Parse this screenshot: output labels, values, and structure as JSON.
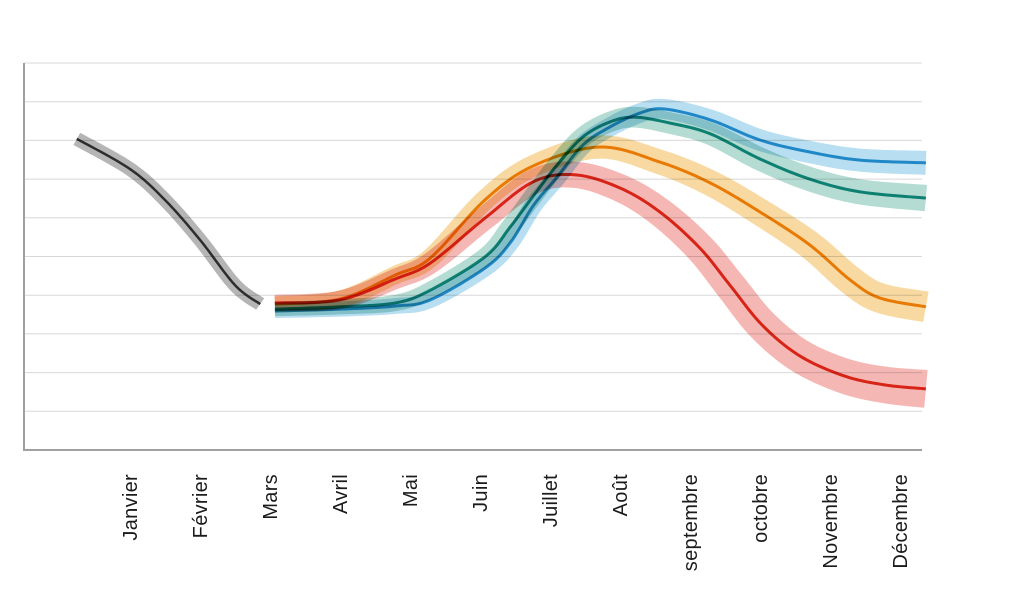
{
  "chart_data": {
    "type": "line",
    "title": "",
    "xlabel": "",
    "ylabel": "",
    "x_axis": {
      "categories": [
        "Janvier",
        "Février",
        "Mars",
        "Avril",
        "Mai",
        "Juin",
        "Juillet",
        "Août",
        "septembre",
        "octobre",
        "Novembre",
        "Décembre"
      ],
      "label_rotation_deg": -90
    },
    "y_axis": {
      "tick_labels_visible": false,
      "range": [
        0,
        10
      ],
      "gridline_interval": 1,
      "note": "no numeric labels shown; values expressed in gridline units above the baseline"
    },
    "legend": {
      "visible": false
    },
    "layout_hints": {
      "grid": "horizontal-only",
      "plot_frame": "left-and-bottom-axis-only",
      "bands": "confidence bands around each line, widening toward December, multiply blending"
    },
    "series": [
      {
        "name": "historique-gris",
        "line_color": "#3f3f3f",
        "band_color": "#b5b5b5",
        "line_width": 2.5,
        "band_halfwidth_start": 0.18,
        "band_halfwidth_end": 0.18,
        "points": [
          [
            0.24,
            8.04
          ],
          [
            1.0,
            7.26
          ],
          [
            1.5,
            6.46
          ],
          [
            2.0,
            5.43
          ],
          [
            2.5,
            4.26
          ],
          [
            2.86,
            3.77
          ]
        ]
      },
      {
        "name": "scenario-rouge",
        "line_color": "#e0311f",
        "band_color": "#f5b7b4",
        "line_width": 3,
        "band_halfwidth_start": 0.21,
        "band_halfwidth_end": 0.49,
        "points": [
          [
            3.07,
            3.8
          ],
          [
            4.0,
            3.88
          ],
          [
            4.79,
            4.42
          ],
          [
            5.29,
            4.83
          ],
          [
            6.07,
            5.99
          ],
          [
            6.76,
            6.93
          ],
          [
            7.36,
            7.11
          ],
          [
            8.0,
            6.77
          ],
          [
            8.57,
            6.15
          ],
          [
            9.14,
            5.22
          ],
          [
            9.57,
            4.26
          ],
          [
            10.03,
            3.23
          ],
          [
            10.57,
            2.43
          ],
          [
            11.21,
            1.91
          ],
          [
            11.79,
            1.68
          ],
          [
            12.37,
            1.58
          ]
        ]
      },
      {
        "name": "scenario-orange",
        "line_color": "#ef8f04",
        "band_color": "#f8d9a2",
        "line_width": 3,
        "band_halfwidth_start": 0.2,
        "band_halfwidth_end": 0.4,
        "points": [
          [
            3.07,
            3.77
          ],
          [
            4.0,
            3.9
          ],
          [
            4.79,
            4.52
          ],
          [
            5.29,
            4.96
          ],
          [
            6.07,
            6.46
          ],
          [
            6.76,
            7.34
          ],
          [
            7.71,
            7.83
          ],
          [
            8.57,
            7.44
          ],
          [
            9.29,
            6.9
          ],
          [
            10.0,
            6.15
          ],
          [
            10.71,
            5.3
          ],
          [
            11.29,
            4.39
          ],
          [
            11.71,
            3.93
          ],
          [
            12.37,
            3.7
          ]
        ]
      },
      {
        "name": "scenario-vert",
        "line_color": "#12948a",
        "band_color": "#b4dcd2",
        "line_width": 3,
        "band_halfwidth_start": 0.18,
        "band_halfwidth_end": 0.34,
        "points": [
          [
            3.07,
            3.64
          ],
          [
            4.0,
            3.7
          ],
          [
            4.79,
            3.8
          ],
          [
            5.29,
            4.13
          ],
          [
            6.07,
            4.99
          ],
          [
            6.43,
            5.76
          ],
          [
            6.76,
            6.56
          ],
          [
            7.1,
            7.36
          ],
          [
            7.47,
            8.09
          ],
          [
            7.86,
            8.48
          ],
          [
            8.21,
            8.6
          ],
          [
            8.71,
            8.45
          ],
          [
            9.29,
            8.17
          ],
          [
            10.0,
            7.52
          ],
          [
            10.71,
            7.0
          ],
          [
            11.43,
            6.67
          ],
          [
            12.37,
            6.51
          ]
        ]
      },
      {
        "name": "scenario-bleu",
        "line_color": "#2d9cd4",
        "band_color": "#b8def1",
        "line_width": 3,
        "band_halfwidth_start": 0.18,
        "band_halfwidth_end": 0.31,
        "points": [
          [
            3.07,
            3.59
          ],
          [
            4.0,
            3.64
          ],
          [
            4.79,
            3.72
          ],
          [
            5.29,
            3.88
          ],
          [
            6.07,
            4.7
          ],
          [
            6.43,
            5.35
          ],
          [
            6.76,
            6.31
          ],
          [
            7.1,
            7.05
          ],
          [
            7.47,
            7.88
          ],
          [
            7.86,
            8.35
          ],
          [
            8.29,
            8.71
          ],
          [
            8.64,
            8.81
          ],
          [
            9.29,
            8.53
          ],
          [
            10.0,
            8.01
          ],
          [
            10.71,
            7.7
          ],
          [
            11.43,
            7.49
          ],
          [
            12.37,
            7.42
          ]
        ]
      }
    ],
    "style": {
      "background_color": "#ffffff",
      "gridline_color": "#d8d8d8",
      "axis_color": "#a0a0a0",
      "label_color": "#1b1b1b"
    }
  }
}
